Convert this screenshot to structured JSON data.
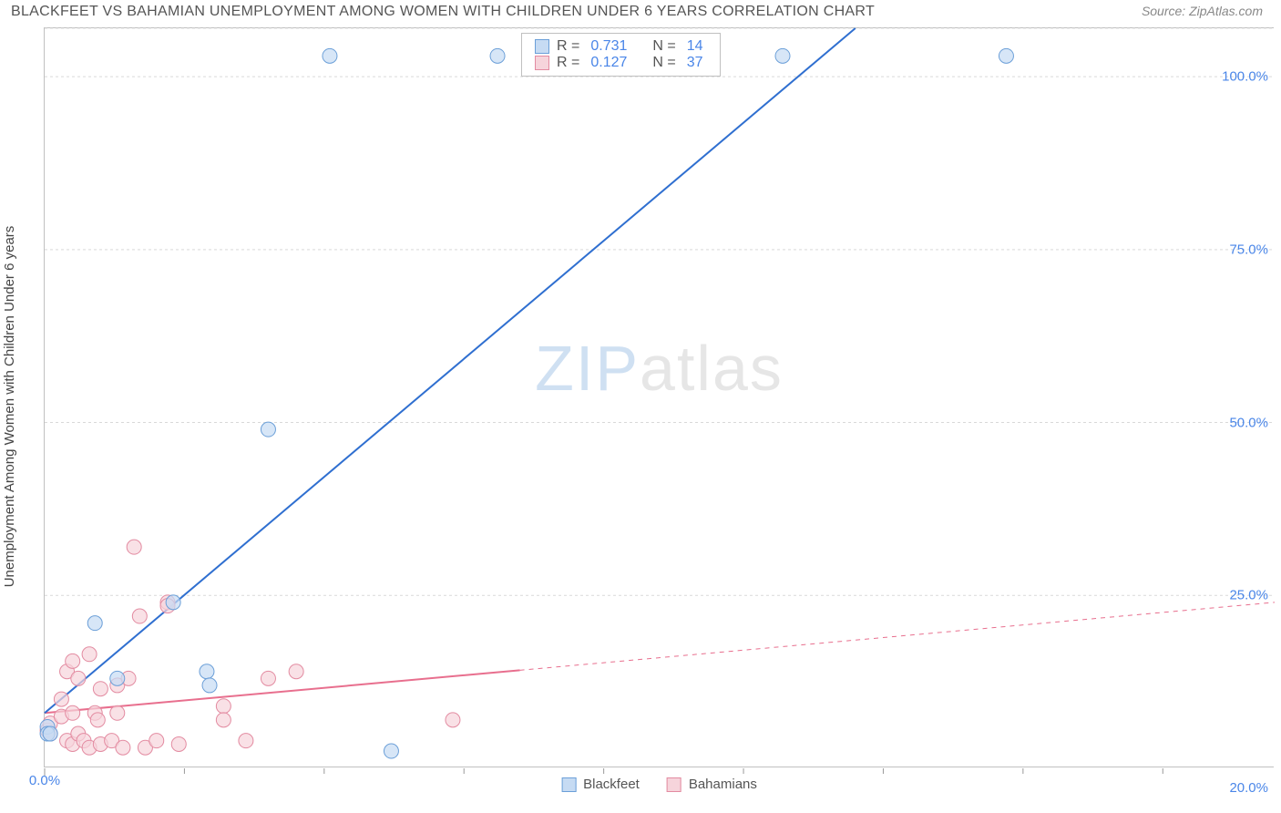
{
  "header": {
    "title": "BLACKFEET VS BAHAMIAN UNEMPLOYMENT AMONG WOMEN WITH CHILDREN UNDER 6 YEARS CORRELATION CHART",
    "source_label": "Source: ",
    "source_value": "ZipAtlas.com"
  },
  "y_axis_label": "Unemployment Among Women with Children Under 6 years",
  "watermark_a": "ZIP",
  "watermark_b": "atlas",
  "chart": {
    "xlim": [
      0,
      22
    ],
    "ylim": [
      0,
      107
    ],
    "y_ticks": [
      25,
      50,
      75,
      100
    ],
    "y_tick_labels": [
      "25.0%",
      "50.0%",
      "75.0%",
      "100.0%"
    ],
    "x_tick_major": 0,
    "x_tick_major_label": "0.0%",
    "x_ticks_minor": [
      2.5,
      5,
      7.5,
      10,
      12.5,
      15,
      17.5,
      20
    ],
    "x_tick_right_label": "20.0%",
    "tick_label_color": "#4a86e8",
    "grid_color": "#d9d9d9",
    "background_color": "#ffffff",
    "series_a": {
      "name": "Blackfeet",
      "marker_fill": "#c6dbf3",
      "marker_stroke": "#6b9fd8",
      "line_color": "#2f6fd0",
      "line_width": 2,
      "marker_r": 8,
      "r_value": "0.731",
      "n_value": "14",
      "reg_x1": 0,
      "reg_y1": 8,
      "reg_x2": 14.5,
      "reg_y2": 107,
      "points": [
        {
          "x": 0.05,
          "y": 6
        },
        {
          "x": 0.05,
          "y": 5
        },
        {
          "x": 0.1,
          "y": 5
        },
        {
          "x": 0.9,
          "y": 21
        },
        {
          "x": 1.3,
          "y": 13
        },
        {
          "x": 2.3,
          "y": 24
        },
        {
          "x": 2.9,
          "y": 14
        },
        {
          "x": 2.95,
          "y": 12
        },
        {
          "x": 4.0,
          "y": 49
        },
        {
          "x": 5.1,
          "y": 103
        },
        {
          "x": 6.2,
          "y": 2.5
        },
        {
          "x": 8.1,
          "y": 103
        },
        {
          "x": 13.2,
          "y": 103
        },
        {
          "x": 17.2,
          "y": 103
        }
      ]
    },
    "series_b": {
      "name": "Bahamians",
      "marker_fill": "#f6d4db",
      "marker_stroke": "#e38ba1",
      "line_color": "#e86f8e",
      "line_width": 2,
      "marker_r": 8,
      "r_value": "0.127",
      "n_value": "37",
      "reg_solid_x2": 8.5,
      "reg_x1": 0,
      "reg_y1": 8,
      "reg_x2": 22,
      "reg_y2": 24,
      "points": [
        {
          "x": 0.05,
          "y": 5.5
        },
        {
          "x": 0.1,
          "y": 6.5
        },
        {
          "x": 0.1,
          "y": 5
        },
        {
          "x": 0.3,
          "y": 7.5
        },
        {
          "x": 0.3,
          "y": 10
        },
        {
          "x": 0.4,
          "y": 4
        },
        {
          "x": 0.4,
          "y": 14
        },
        {
          "x": 0.5,
          "y": 8
        },
        {
          "x": 0.5,
          "y": 3.5
        },
        {
          "x": 0.5,
          "y": 15.5
        },
        {
          "x": 0.6,
          "y": 5
        },
        {
          "x": 0.6,
          "y": 13
        },
        {
          "x": 0.7,
          "y": 4
        },
        {
          "x": 0.8,
          "y": 3
        },
        {
          "x": 0.8,
          "y": 16.5
        },
        {
          "x": 0.9,
          "y": 8
        },
        {
          "x": 0.95,
          "y": 7
        },
        {
          "x": 1.0,
          "y": 3.5
        },
        {
          "x": 1.0,
          "y": 11.5
        },
        {
          "x": 1.2,
          "y": 4
        },
        {
          "x": 1.3,
          "y": 12
        },
        {
          "x": 1.3,
          "y": 8
        },
        {
          "x": 1.4,
          "y": 3
        },
        {
          "x": 1.5,
          "y": 13
        },
        {
          "x": 1.6,
          "y": 32
        },
        {
          "x": 1.7,
          "y": 22
        },
        {
          "x": 1.8,
          "y": 3
        },
        {
          "x": 2.0,
          "y": 4
        },
        {
          "x": 2.2,
          "y": 24
        },
        {
          "x": 2.2,
          "y": 23.5
        },
        {
          "x": 2.4,
          "y": 3.5
        },
        {
          "x": 3.2,
          "y": 9
        },
        {
          "x": 3.2,
          "y": 7
        },
        {
          "x": 3.6,
          "y": 4
        },
        {
          "x": 4.0,
          "y": 13
        },
        {
          "x": 4.5,
          "y": 14
        },
        {
          "x": 7.3,
          "y": 7
        }
      ]
    }
  },
  "stats_labels": {
    "R": "R =",
    "N": "N ="
  },
  "legend": {
    "a_label": "Blackfeet",
    "b_label": "Bahamians"
  }
}
